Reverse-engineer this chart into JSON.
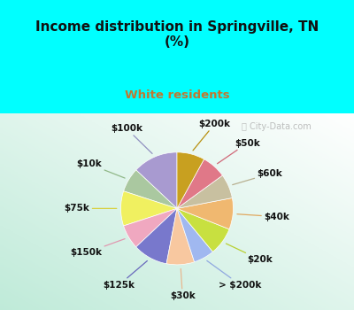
{
  "title": "Income distribution in Springville, TN\n(%)",
  "subtitle": "White residents",
  "title_color": "#111111",
  "subtitle_color": "#c07830",
  "bg_cyan": "#00ffff",
  "watermark": "ⓘ City-Data.com",
  "labels": [
    "$100k",
    "$10k",
    "$75k",
    "$150k",
    "$125k",
    "$30k",
    "> $200k",
    "$20k",
    "$40k",
    "$60k",
    "$50k",
    "$200k"
  ],
  "values": [
    13,
    7,
    10,
    7,
    10,
    8,
    6,
    8,
    9,
    7,
    7,
    8
  ],
  "colors": [
    "#a89ad0",
    "#aac8a0",
    "#f0f060",
    "#f0a8c0",
    "#7878cc",
    "#f8c8a0",
    "#a0b8f0",
    "#c8e040",
    "#f0b870",
    "#c8c0a0",
    "#e07888",
    "#c8a020"
  ],
  "line_colors": [
    "#9090c0",
    "#90b888",
    "#d8d040",
    "#e098b0",
    "#6868bc",
    "#e8b890",
    "#90a8e0",
    "#b8d030",
    "#e0a860",
    "#b8b090",
    "#d06878",
    "#b89010"
  ],
  "startangle": 90,
  "label_fontsize": 7.5
}
